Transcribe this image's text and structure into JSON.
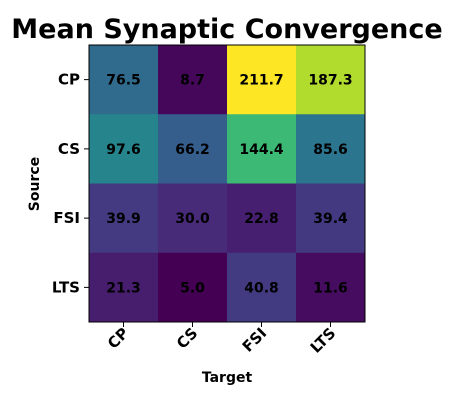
{
  "chart_data": {
    "type": "heatmap",
    "title": "Mean Synaptic Convergence",
    "xlabel": "Target",
    "ylabel": "Source",
    "x_categories": [
      "CP",
      "CS",
      "FSI",
      "LTS"
    ],
    "y_categories": [
      "CP",
      "CS",
      "FSI",
      "LTS"
    ],
    "values": [
      [
        76.5,
        8.7,
        211.7,
        187.3
      ],
      [
        97.6,
        66.2,
        144.4,
        85.6
      ],
      [
        39.9,
        30.0,
        22.8,
        39.4
      ],
      [
        21.3,
        5.0,
        40.8,
        11.6
      ]
    ],
    "value_labels": [
      [
        "76.5",
        "8.7",
        "211.7",
        "187.3"
      ],
      [
        "97.6",
        "66.2",
        "144.4",
        "85.6"
      ],
      [
        "39.9",
        "30.0",
        "22.8",
        "39.4"
      ],
      [
        "21.3",
        "5.0",
        "40.8",
        "11.6"
      ]
    ],
    "colormap": "viridis",
    "color_range": [
      5.0,
      211.7
    ],
    "colorbar": false,
    "grid": false
  }
}
